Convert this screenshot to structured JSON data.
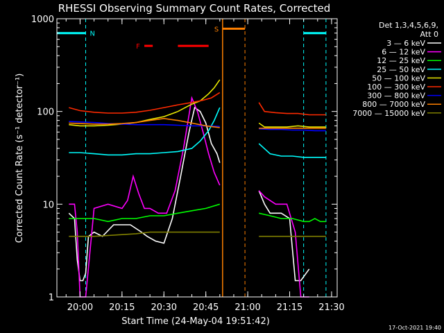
{
  "chart_data": {
    "type": "line",
    "title": "RHESSI Observing Summary Count Rates, Corrected",
    "xlabel": "Start Time (24-May-04 19:51:42)",
    "ylabel": "Corrected Count Rate (s⁻¹ detector⁻¹)",
    "yscale": "log",
    "ylim": [
      1,
      1000
    ],
    "xlim": [
      "19:51:42",
      "21:32:00"
    ],
    "x_ticks": [
      "20:00",
      "20:15",
      "20:30",
      "20:45",
      "21:00",
      "21:15",
      "21:30"
    ],
    "y_ticks": [
      "1",
      "10",
      "100",
      "1000"
    ],
    "legend_header": [
      "Det 1,3,4,5,6,9,",
      "Att 0"
    ],
    "legend_placement": "right",
    "footer": "17-Oct-2021 19:40",
    "series": [
      {
        "name": "3 — 6 keV",
        "color": "#ffffff",
        "x": [
          "19:56",
          "19:58",
          "19:59",
          "20:00",
          "20:01",
          "20:02",
          "20:03",
          "20:05",
          "20:08",
          "20:12",
          "20:18",
          "20:22",
          "20:24",
          "20:27",
          "20:30",
          "20:33",
          "20:36",
          "20:39",
          "20:41",
          "20:43",
          "20:45",
          "20:47",
          "20:49",
          "20:50",
          "21:04",
          "21:06",
          "21:08",
          "21:12",
          "21:15",
          "21:17",
          "21:19",
          "21:22"
        ],
        "y": [
          8,
          7,
          2.5,
          1.5,
          1.5,
          1.8,
          4.5,
          5,
          4.5,
          6,
          6,
          5,
          4.5,
          4,
          3.8,
          7,
          20,
          60,
          110,
          100,
          75,
          45,
          35,
          28,
          14,
          10,
          8,
          8,
          7,
          1.5,
          1.5,
          2
        ]
      },
      {
        "name": "6 — 12 keV",
        "color": "#ff00ff",
        "x": [
          "19:56",
          "19:58",
          "19:59",
          "20:00",
          "20:02",
          "20:05",
          "20:10",
          "20:15",
          "20:17",
          "20:19",
          "20:21",
          "20:23",
          "20:25",
          "20:28",
          "20:31",
          "20:34",
          "20:37",
          "20:40",
          "20:42",
          "20:44",
          "20:46",
          "20:48",
          "20:50",
          "21:04",
          "21:06",
          "21:10",
          "21:14",
          "21:17",
          "21:19",
          "21:22"
        ],
        "y": [
          10,
          10,
          5,
          1,
          1,
          9,
          10,
          9,
          11,
          20,
          13,
          9,
          9,
          8,
          8,
          14,
          40,
          140,
          100,
          60,
          35,
          22,
          16,
          14,
          12,
          10,
          10,
          5,
          1,
          1
        ]
      },
      {
        "name": "12 — 25 keV",
        "color": "#00ff00",
        "x": [
          "19:56",
          "20:00",
          "20:05",
          "20:10",
          "20:15",
          "20:20",
          "20:25",
          "20:30",
          "20:35",
          "20:40",
          "20:45",
          "20:50",
          "21:04",
          "21:08",
          "21:12",
          "21:16",
          "21:20",
          "21:22",
          "21:24",
          "21:26",
          "21:28"
        ],
        "y": [
          7,
          7,
          7,
          6.5,
          7,
          7,
          7.5,
          7.5,
          8,
          8.5,
          9,
          10,
          8,
          7.5,
          7,
          7,
          6.5,
          6.5,
          7,
          6.5,
          6.5
        ]
      },
      {
        "name": "25 — 50 keV",
        "color": "#00ffff",
        "x": [
          "19:56",
          "20:00",
          "20:05",
          "20:10",
          "20:15",
          "20:20",
          "20:25",
          "20:30",
          "20:35",
          "20:40",
          "20:43",
          "20:46",
          "20:48",
          "20:50",
          "21:04",
          "21:08",
          "21:12",
          "21:16",
          "21:20",
          "21:24",
          "21:28"
        ],
        "y": [
          36,
          36,
          35,
          34,
          34,
          35,
          35,
          36,
          37,
          40,
          48,
          62,
          80,
          110,
          45,
          35,
          33,
          33,
          32,
          32,
          32
        ]
      },
      {
        "name": "50 — 100 keV",
        "color": "#e8e800",
        "x": [
          "19:56",
          "20:00",
          "20:05",
          "20:10",
          "20:15",
          "20:20",
          "20:25",
          "20:30",
          "20:35",
          "20:40",
          "20:43",
          "20:46",
          "20:48",
          "20:50",
          "21:04",
          "21:06",
          "21:10",
          "21:14",
          "21:18",
          "21:22",
          "21:26",
          "21:28"
        ],
        "y": [
          72,
          70,
          70,
          71,
          73,
          76,
          82,
          88,
          100,
          120,
          130,
          155,
          180,
          220,
          75,
          68,
          68,
          68,
          70,
          68,
          68,
          68
        ]
      },
      {
        "name": "100 — 300 keV",
        "color": "#ff2a00",
        "x": [
          "19:56",
          "20:00",
          "20:05",
          "20:10",
          "20:15",
          "20:20",
          "20:25",
          "20:30",
          "20:35",
          "20:40",
          "20:44",
          "20:47",
          "20:50",
          "21:04",
          "21:06",
          "21:10",
          "21:14",
          "21:18",
          "21:22",
          "21:26",
          "21:28"
        ],
        "y": [
          110,
          102,
          98,
          96,
          96,
          98,
          103,
          110,
          118,
          125,
          132,
          140,
          160,
          125,
          100,
          97,
          95,
          95,
          92,
          92,
          92
        ]
      },
      {
        "name": "300 — 800 keV",
        "color": "#0000ff",
        "x": [
          "19:56",
          "20:00",
          "20:05",
          "20:10",
          "20:15",
          "20:20",
          "20:25",
          "20:30",
          "20:35",
          "20:40",
          "20:45",
          "20:50",
          "21:04",
          "21:08",
          "21:12",
          "21:16",
          "21:20",
          "21:24",
          "21:28"
        ],
        "y": [
          78,
          77,
          76,
          74,
          73,
          72,
          72,
          72,
          71,
          70,
          70,
          69,
          65,
          64,
          64,
          63,
          63,
          62,
          62
        ]
      },
      {
        "name": "800 — 7000 keV",
        "color": "#ff8000",
        "x": [
          "19:56",
          "20:00",
          "20:05",
          "20:10",
          "20:15",
          "20:20",
          "20:25",
          "20:30",
          "20:35",
          "20:40",
          "20:45",
          "20:50",
          "21:04",
          "21:08",
          "21:12",
          "21:16",
          "21:20",
          "21:24",
          "21:28"
        ],
        "y": [
          75,
          74,
          73,
          73,
          74,
          76,
          80,
          84,
          80,
          75,
          70,
          67,
          66,
          66,
          66,
          66,
          66,
          66,
          66
        ]
      },
      {
        "name": "7000 — 15000 keV",
        "color": "#808000",
        "x": [
          "19:56",
          "20:00",
          "20:05",
          "20:10",
          "20:15",
          "20:20",
          "20:25",
          "20:30",
          "20:35",
          "20:40",
          "20:45",
          "20:50",
          "21:04",
          "21:08",
          "21:12",
          "21:16",
          "21:20",
          "21:24",
          "21:28"
        ],
        "y": [
          4.5,
          4.5,
          4.5,
          4.6,
          4.7,
          4.8,
          5,
          5,
          5,
          5,
          5,
          5,
          4.5,
          4.5,
          4.5,
          4.5,
          4.5,
          4.5,
          4.5
        ]
      }
    ],
    "annotations": [
      {
        "label": "N",
        "kind": "night",
        "color": "#00ffff",
        "x_start": "19:51:42",
        "x_end": "20:02",
        "y_level": 700
      },
      {
        "label": "",
        "kind": "night",
        "color": "#00ffff",
        "x_start": "21:20",
        "x_end": "21:28",
        "y_level": 700
      },
      {
        "label": "F",
        "kind": "flare",
        "color": "#ff0000",
        "segments": [
          [
            "20:23",
            "20:26"
          ],
          [
            "20:35",
            "20:46"
          ]
        ],
        "y_level": 510
      },
      {
        "label": "S",
        "kind": "saa",
        "color": "#ff8000",
        "x_start": "20:51",
        "x_end": "20:59",
        "y_level": 780
      }
    ],
    "vlines": [
      {
        "x": "20:02",
        "color": "#00ffff",
        "dashed": true
      },
      {
        "x": "20:51",
        "color": "#ff8000",
        "dashed": false
      },
      {
        "x": "20:59",
        "color": "#ff8000",
        "dashed": true
      },
      {
        "x": "21:20",
        "color": "#00ffff",
        "dashed": true
      },
      {
        "x": "21:28",
        "color": "#00ffff",
        "dashed": true
      }
    ]
  }
}
